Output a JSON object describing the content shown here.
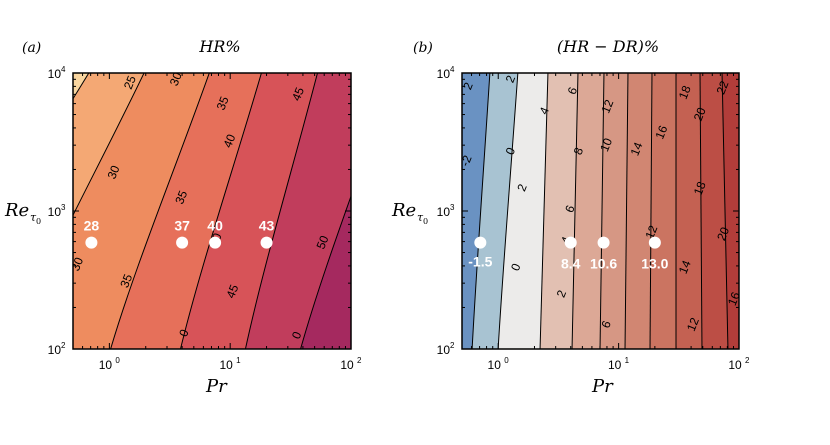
{
  "chart_data": [
    {
      "type": "contour",
      "panel_label": "(a)",
      "title": "HR%",
      "xlabel": "Pr",
      "ylabel": "Re_τ0",
      "xscale": "log",
      "yscale": "log",
      "xlim": [
        0.5,
        100
      ],
      "ylim": [
        100,
        10000
      ],
      "x_ticks": [
        {
          "value": 1,
          "label": "10^0"
        },
        {
          "value": 10,
          "label": "10^1"
        },
        {
          "value": 100,
          "label": "10^2"
        }
      ],
      "y_ticks": [
        {
          "value": 100,
          "label": "10^2"
        },
        {
          "value": 1000,
          "label": "10^3"
        },
        {
          "value": 10000,
          "label": "10^4"
        }
      ],
      "contour_levels": [
        25,
        30,
        35,
        40,
        45,
        50
      ],
      "colormap": [
        "#f9d6a0",
        "#f4a874",
        "#ee8c5f",
        "#e6705a",
        "#d75358",
        "#c13d5c",
        "#a5295f"
      ],
      "contour_labels": [
        {
          "text": "25",
          "x": 1.5,
          "y": 8500
        },
        {
          "text": "30",
          "x": 3.6,
          "y": 9000
        },
        {
          "text": "35",
          "x": 8.8,
          "y": 6000
        },
        {
          "text": "45",
          "x": 37,
          "y": 7000
        },
        {
          "text": "40",
          "x": 10,
          "y": 3200
        },
        {
          "text": "30",
          "x": 1.1,
          "y": 1900
        },
        {
          "text": "35",
          "x": 4.0,
          "y": 1250
        },
        {
          "text": "40",
          "x": 7.7,
          "y": 615
        },
        {
          "text": "50",
          "x": 59,
          "y": 590
        },
        {
          "text": "30",
          "x": 0.55,
          "y": 410
        },
        {
          "text": "35",
          "x": 1.4,
          "y": 310
        },
        {
          "text": "45",
          "x": 10.6,
          "y": 260
        },
        {
          "text": "0",
          "x": 4.2,
          "y": 130
        },
        {
          "text": "0",
          "x": 36,
          "y": 125
        }
      ],
      "points": [
        {
          "pr": 0.71,
          "re": 590,
          "label": "28"
        },
        {
          "pr": 4.0,
          "re": 590,
          "label": "37"
        },
        {
          "pr": 7.5,
          "re": 590,
          "label": "40"
        },
        {
          "pr": 20,
          "re": 590,
          "label": "43"
        }
      ]
    },
    {
      "type": "contour",
      "panel_label": "(b)",
      "title": "(HR − DR)%",
      "xlabel": "Pr",
      "ylabel": "Re_τ0",
      "xscale": "log",
      "yscale": "log",
      "xlim": [
        0.5,
        100
      ],
      "ylim": [
        100,
        10000
      ],
      "x_ticks": [
        {
          "value": 1,
          "label": "10^0"
        },
        {
          "value": 10,
          "label": "10^1"
        },
        {
          "value": 100,
          "label": "10^2"
        }
      ],
      "y_ticks": [
        {
          "value": 100,
          "label": "10^2"
        },
        {
          "value": 1000,
          "label": "10^3"
        },
        {
          "value": 10000,
          "label": "10^4"
        }
      ],
      "contour_levels": [
        -2,
        0,
        2,
        4,
        6,
        8,
        10,
        12,
        14,
        16,
        18,
        20,
        22
      ],
      "colormap": [
        "#6a92c2",
        "#a8c3d2",
        "#ecebea",
        "#e2c0b2",
        "#dca896",
        "#d69784",
        "#d18672",
        "#cb7461",
        "#c46152",
        "#bc4e45",
        "#b23d3a",
        "#a62d31",
        "#98202c"
      ],
      "contour_labels": [
        {
          "text": "2",
          "x": 0.57,
          "y": 8000
        },
        {
          "text": "2",
          "x": 1.28,
          "y": 9000
        },
        {
          "text": "-2",
          "x": 0.55,
          "y": 2300
        },
        {
          "text": "0",
          "x": 1.28,
          "y": 2700
        },
        {
          "text": "4",
          "x": 2.45,
          "y": 5300
        },
        {
          "text": "6",
          "x": 4.2,
          "y": 7400
        },
        {
          "text": "8",
          "x": 4.7,
          "y": 2700
        },
        {
          "text": "12",
          "x": 8.2,
          "y": 5700
        },
        {
          "text": "10",
          "x": 8.0,
          "y": 3000
        },
        {
          "text": "14",
          "x": 14.3,
          "y": 2800
        },
        {
          "text": "16",
          "x": 23,
          "y": 3700
        },
        {
          "text": "18",
          "x": 36,
          "y": 7200
        },
        {
          "text": "22",
          "x": 74,
          "y": 7800
        },
        {
          "text": "20",
          "x": 48,
          "y": 5000
        },
        {
          "text": "18",
          "x": 48,
          "y": 1450
        },
        {
          "text": "2",
          "x": 1.6,
          "y": 1470
        },
        {
          "text": "6",
          "x": 4.0,
          "y": 1030
        },
        {
          "text": "12",
          "x": 19,
          "y": 700
        },
        {
          "text": "20",
          "x": 75,
          "y": 680
        },
        {
          "text": "4",
          "x": 3.7,
          "y": 610
        },
        {
          "text": "0",
          "x": 1.42,
          "y": 390
        },
        {
          "text": "14",
          "x": 36,
          "y": 390
        },
        {
          "text": "16",
          "x": 92,
          "y": 230
        },
        {
          "text": "2",
          "x": 3.4,
          "y": 250
        },
        {
          "text": "6",
          "x": 8.0,
          "y": 150
        },
        {
          "text": "12",
          "x": 42,
          "y": 150
        }
      ],
      "points": [
        {
          "pr": 0.71,
          "re": 590,
          "label": "-1.5"
        },
        {
          "pr": 4.0,
          "re": 590,
          "label": "8.4"
        },
        {
          "pr": 7.5,
          "re": 590,
          "label": "10.6"
        },
        {
          "pr": 20,
          "re": 590,
          "label": "13.0"
        }
      ]
    }
  ]
}
